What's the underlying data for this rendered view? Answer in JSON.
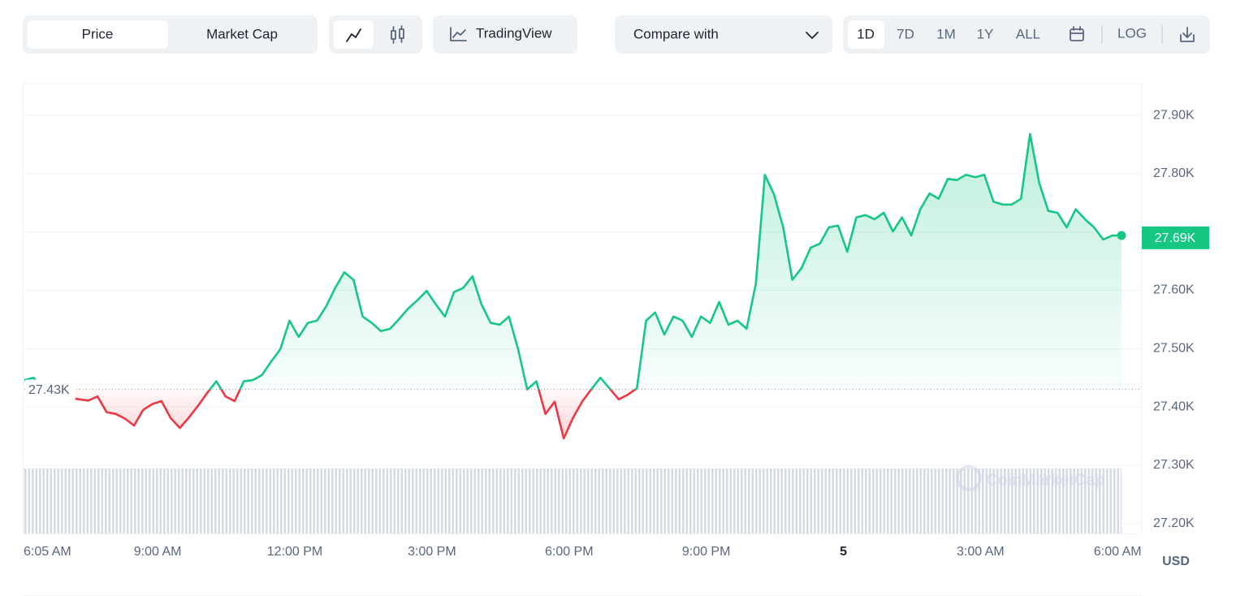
{
  "controls": {
    "view": [
      "Price",
      "Market Cap"
    ],
    "tradingview": "TradingView",
    "compare": "Compare with",
    "ranges": [
      "1D",
      "7D",
      "1M",
      "1Y",
      "ALL"
    ],
    "log": "LOG"
  },
  "chart_data": {
    "type": "line",
    "up_color": "#16c784",
    "down_color": "#ea3943",
    "grid": true,
    "xlim": [
      0,
      120
    ],
    "xticks": [
      {
        "value": 0,
        "label": "6:05 AM"
      },
      {
        "value": 14.58,
        "label": "9:00 AM"
      },
      {
        "value": 29.58,
        "label": "12:00 PM"
      },
      {
        "value": 44.58,
        "label": "3:00 PM"
      },
      {
        "value": 59.58,
        "label": "6:00 PM"
      },
      {
        "value": 74.58,
        "label": "9:00 PM"
      },
      {
        "value": 89.58,
        "label": "5"
      },
      {
        "value": 104.58,
        "label": "3:00 AM"
      },
      {
        "value": 119.58,
        "label": "6:00 AM"
      }
    ],
    "ylim": [
      27183,
      27953
    ],
    "yticks": [
      {
        "value": 27900,
        "label": "27.90K"
      },
      {
        "value": 27800,
        "label": "27.80K"
      },
      {
        "value": 27700,
        "label": "27.70K"
      },
      {
        "value": 27600,
        "label": "27.60K"
      },
      {
        "value": 27500,
        "label": "27.50K"
      },
      {
        "value": 27400,
        "label": "27.40K"
      },
      {
        "value": 27300,
        "label": "27.30K"
      },
      {
        "value": 27200,
        "label": "27.20K"
      }
    ],
    "baseline": {
      "value": 27430,
      "label": "27.43K"
    },
    "last_price": {
      "value": 27690,
      "label": "27.69K"
    },
    "currency": "USD",
    "watermark": "CoinMarketCap",
    "values": [
      27446,
      27450,
      27432,
      27423,
      27418,
      27416,
      27413,
      27411,
      27418,
      27391,
      27388,
      27380,
      27368,
      27395,
      27405,
      27410,
      27381,
      27364,
      27382,
      27402,
      27424,
      27444,
      27418,
      27410,
      27444,
      27446,
      27455,
      27478,
      27499,
      27548,
      27520,
      27544,
      27548,
      27572,
      27604,
      27631,
      27618,
      27555,
      27544,
      27530,
      27534,
      27551,
      27569,
      27583,
      27599,
      27576,
      27555,
      27597,
      27604,
      27624,
      27576,
      27544,
      27541,
      27555,
      27499,
      27430,
      27444,
      27388,
      27409,
      27346,
      27381,
      27409,
      27430,
      27450,
      27432,
      27413,
      27421,
      27432,
      27548,
      27562,
      27524,
      27555,
      27548,
      27520,
      27555,
      27544,
      27580,
      27541,
      27548,
      27534,
      27611,
      27798,
      27764,
      27708,
      27618,
      27638,
      27673,
      27680,
      27708,
      27711,
      27666,
      27725,
      27729,
      27722,
      27733,
      27701,
      27725,
      27694,
      27739,
      27766,
      27757,
      27791,
      27789,
      27798,
      27794,
      27798,
      27752,
      27747,
      27747,
      27757,
      27868,
      27784,
      27736,
      27733,
      27708,
      27739,
      27722,
      27708,
      27687,
      27694,
      27694
    ]
  }
}
